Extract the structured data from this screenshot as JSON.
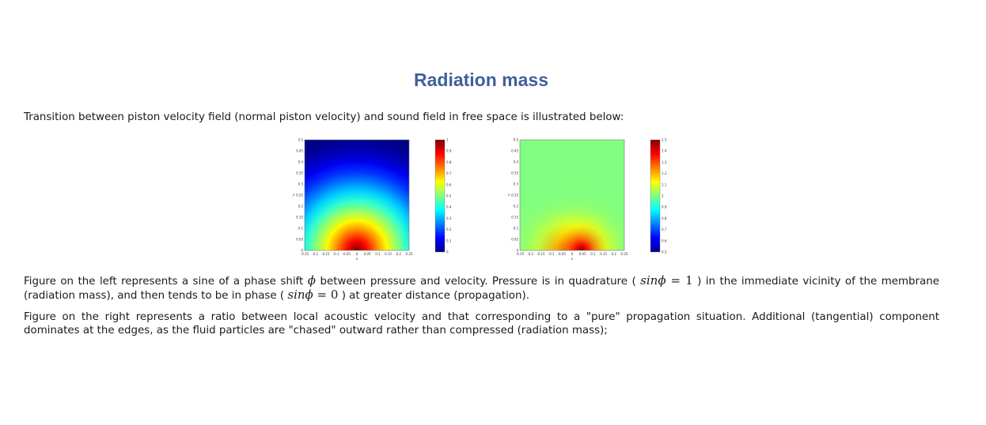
{
  "page": {
    "title": "Radiation mass",
    "intro": "Transition between piston velocity field (normal piston velocity) and sound field in free space is illustrated below:",
    "para_left": {
      "t1": "Figure on the left represents a sine of a phase shift ",
      "phi": "ϕ",
      "t2": " between pressure and velocity. Pressure is in quadrature ( ",
      "eq1_lhs": "sinϕ",
      "eq1_rhs": " = 1",
      "t3": " ) in the immediate vicinity of the membrane (radiation mass), and then tends to be in phase ( ",
      "eq2_lhs": "sinϕ",
      "eq2_rhs": " = 0",
      "t4": " ) at greater distance (propagation)."
    },
    "para_right": "Figure on the right represents a ratio between local acoustic velocity and that corresponding to a \"pure\" propagation situation. Additional (tangential) component dominates at the edges, as the fluid particles are \"chased\" outward rather than compressed (radiation mass);"
  },
  "figures": [
    {
      "type": "heatmap",
      "name": "left",
      "xlabel": "x",
      "ylabel": "z",
      "xticks": [
        "-0.25",
        "-0.2",
        "-0.15",
        "-0.1",
        "-0.05",
        "0",
        "0.05",
        "0.1",
        "0.15",
        "0.2",
        "0.25"
      ],
      "yticks": [
        "0.5",
        "0.45",
        "0.4",
        "0.35",
        "0.3",
        "0.25",
        "0.2",
        "0.15",
        "0.1",
        "0.05",
        "0"
      ],
      "colorbar_ticks": [
        "1",
        "0.9",
        "0.8",
        "0.7",
        "0.6",
        "0.5",
        "0.4",
        "0.3",
        "0.2",
        "0.1",
        "0"
      ],
      "colorbar_range": [
        0,
        1
      ],
      "background_level": 0,
      "hotspots": [
        {
          "x": 0,
          "level": 1
        }
      ]
    },
    {
      "type": "heatmap",
      "name": "right",
      "xlabel": "x",
      "ylabel": "z",
      "xticks": [
        "-0.25",
        "-0.2",
        "-0.15",
        "-0.1",
        "-0.05",
        "0",
        "0.05",
        "0.1",
        "0.15",
        "0.2",
        "0.25"
      ],
      "yticks": [
        "0.5",
        "0.45",
        "0.4",
        "0.35",
        "0.3",
        "0.25",
        "0.2",
        "0.15",
        "0.1",
        "0.05",
        "0"
      ],
      "colorbar_ticks": [
        "1.5",
        "1.4",
        "1.3",
        "1.2",
        "1.1",
        "1",
        "0.9",
        "0.8",
        "0.7",
        "0.6",
        "0.5"
      ],
      "colorbar_range": [
        0.5,
        1.5
      ],
      "background_level": 1,
      "hotspots": [
        {
          "x": -0.045,
          "level": 1.5
        },
        {
          "x": 0.045,
          "level": 1.5
        }
      ]
    }
  ]
}
